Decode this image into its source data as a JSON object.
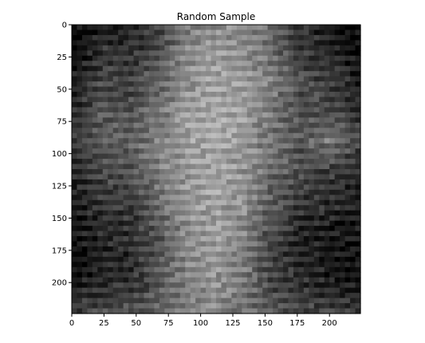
{
  "chart_data": {
    "type": "heatmap",
    "title": "Random Sample",
    "xlabel": "",
    "ylabel": "",
    "colormap": "gray",
    "xlim": [
      0,
      224
    ],
    "ylim": [
      224,
      0
    ],
    "x_ticks": [
      0,
      25,
      50,
      75,
      100,
      125,
      150,
      175,
      200
    ],
    "y_ticks": [
      0,
      25,
      50,
      75,
      100,
      125,
      150,
      175,
      200
    ],
    "grid": false,
    "description_of_values": [
      [
        0.1,
        0.15,
        0.22,
        0.3,
        0.55,
        0.62,
        0.6,
        0.45,
        0.25,
        0.15,
        0.1
      ],
      [
        0.12,
        0.28,
        0.25,
        0.38,
        0.6,
        0.66,
        0.62,
        0.48,
        0.3,
        0.22,
        0.12
      ],
      [
        0.18,
        0.35,
        0.32,
        0.45,
        0.64,
        0.7,
        0.66,
        0.55,
        0.36,
        0.3,
        0.2
      ],
      [
        0.22,
        0.4,
        0.38,
        0.52,
        0.68,
        0.72,
        0.68,
        0.52,
        0.38,
        0.35,
        0.25
      ],
      [
        0.3,
        0.45,
        0.45,
        0.56,
        0.68,
        0.72,
        0.66,
        0.5,
        0.4,
        0.55,
        0.35
      ],
      [
        0.2,
        0.35,
        0.4,
        0.55,
        0.66,
        0.7,
        0.64,
        0.48,
        0.36,
        0.32,
        0.22
      ],
      [
        0.18,
        0.28,
        0.3,
        0.5,
        0.65,
        0.7,
        0.62,
        0.42,
        0.28,
        0.25,
        0.18
      ],
      [
        0.15,
        0.22,
        0.25,
        0.42,
        0.62,
        0.68,
        0.6,
        0.35,
        0.22,
        0.18,
        0.15
      ],
      [
        0.12,
        0.2,
        0.22,
        0.38,
        0.6,
        0.66,
        0.55,
        0.3,
        0.2,
        0.15,
        0.12
      ],
      [
        0.15,
        0.22,
        0.25,
        0.4,
        0.58,
        0.64,
        0.52,
        0.32,
        0.25,
        0.18,
        0.14
      ],
      [
        0.3,
        0.35,
        0.38,
        0.45,
        0.55,
        0.6,
        0.5,
        0.4,
        0.35,
        0.32,
        0.28
      ]
    ]
  }
}
